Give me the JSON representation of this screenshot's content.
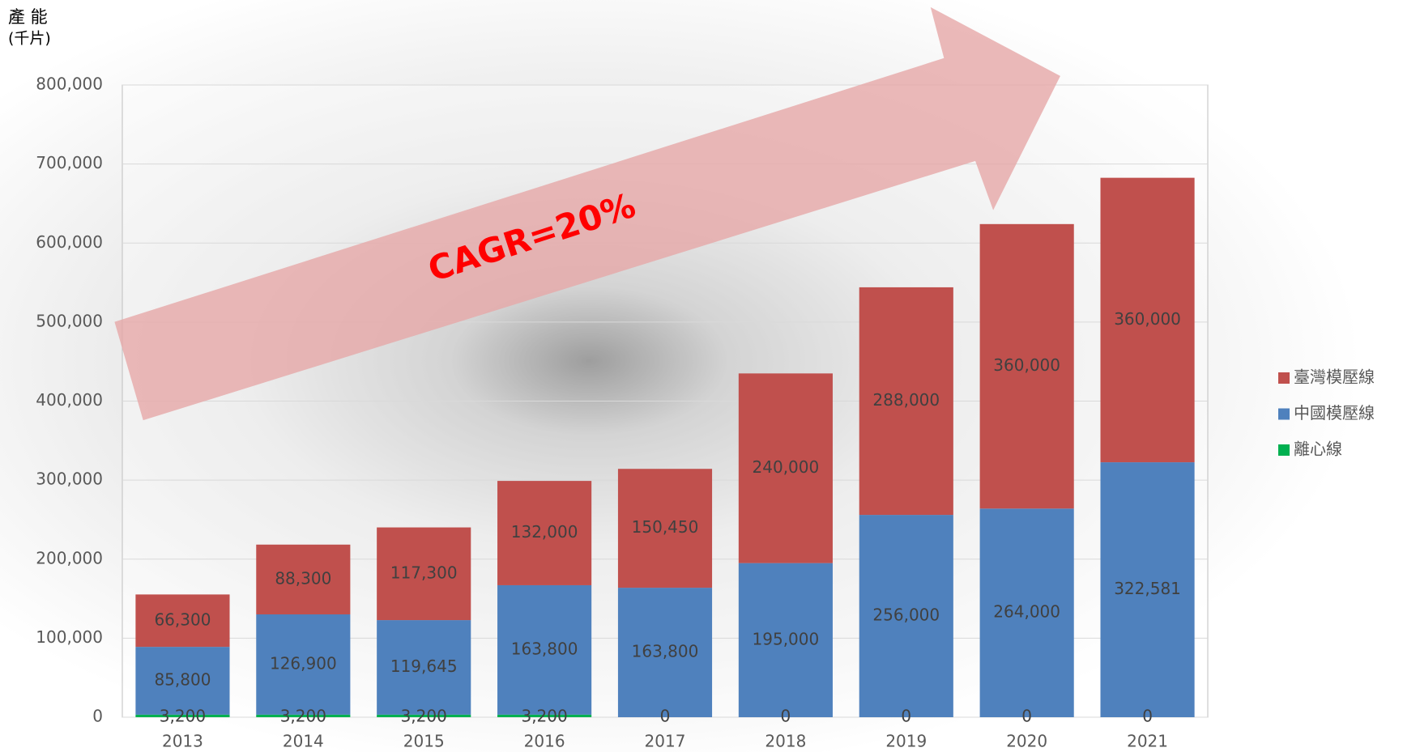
{
  "chart_data": {
    "type": "stacked_bar",
    "y_label": "產 能",
    "y_unit": "(千片)",
    "annotation": "CAGR=20%",
    "categories": [
      "2013",
      "2014",
      "2015",
      "2016",
      "2017",
      "2018",
      "2019",
      "2020",
      "2021"
    ],
    "series": [
      {
        "name": "離心線",
        "color": "#00b050",
        "values": [
          3200,
          3200,
          3200,
          3200,
          0,
          0,
          0,
          0,
          0
        ],
        "value_labels": [
          "3,200",
          "3,200",
          "3,200",
          "3,200",
          "0",
          "0",
          "0",
          "0",
          "0"
        ]
      },
      {
        "name": "中國模壓線",
        "color": "#4f81bd",
        "values": [
          85800,
          126900,
          119645,
          163800,
          163800,
          195000,
          256000,
          264000,
          322581
        ],
        "value_labels": [
          "85,800",
          "126,900",
          "119,645",
          "163,800",
          "163,800",
          "195,000",
          "256,000",
          "264,000",
          "322,581"
        ]
      },
      {
        "name": "臺灣模壓線",
        "color": "#c0504d",
        "values": [
          66300,
          88300,
          117300,
          132000,
          150450,
          240000,
          288000,
          360000,
          360000
        ],
        "value_labels": [
          "66,300",
          "88,300",
          "117,300",
          "132,000",
          "150,450",
          "240,000",
          "288,000",
          "360,000",
          "360,000"
        ]
      }
    ],
    "ylim": [
      0,
      800000
    ],
    "yticks": [
      0,
      {
        "value": 100000,
        "label": "100,000"
      },
      {
        "value": 200000,
        "label": "200,000"
      },
      {
        "value": 300000,
        "label": "300,000"
      },
      {
        "value": 400000,
        "label": "400,000"
      },
      {
        "value": 500000,
        "label": "500,000"
      },
      {
        "value": 600000,
        "label": "600,000"
      },
      {
        "value": 700000,
        "label": "700,000"
      },
      {
        "value": 800000,
        "label": "800,000"
      }
    ],
    "grid": true,
    "legend": "right"
  }
}
